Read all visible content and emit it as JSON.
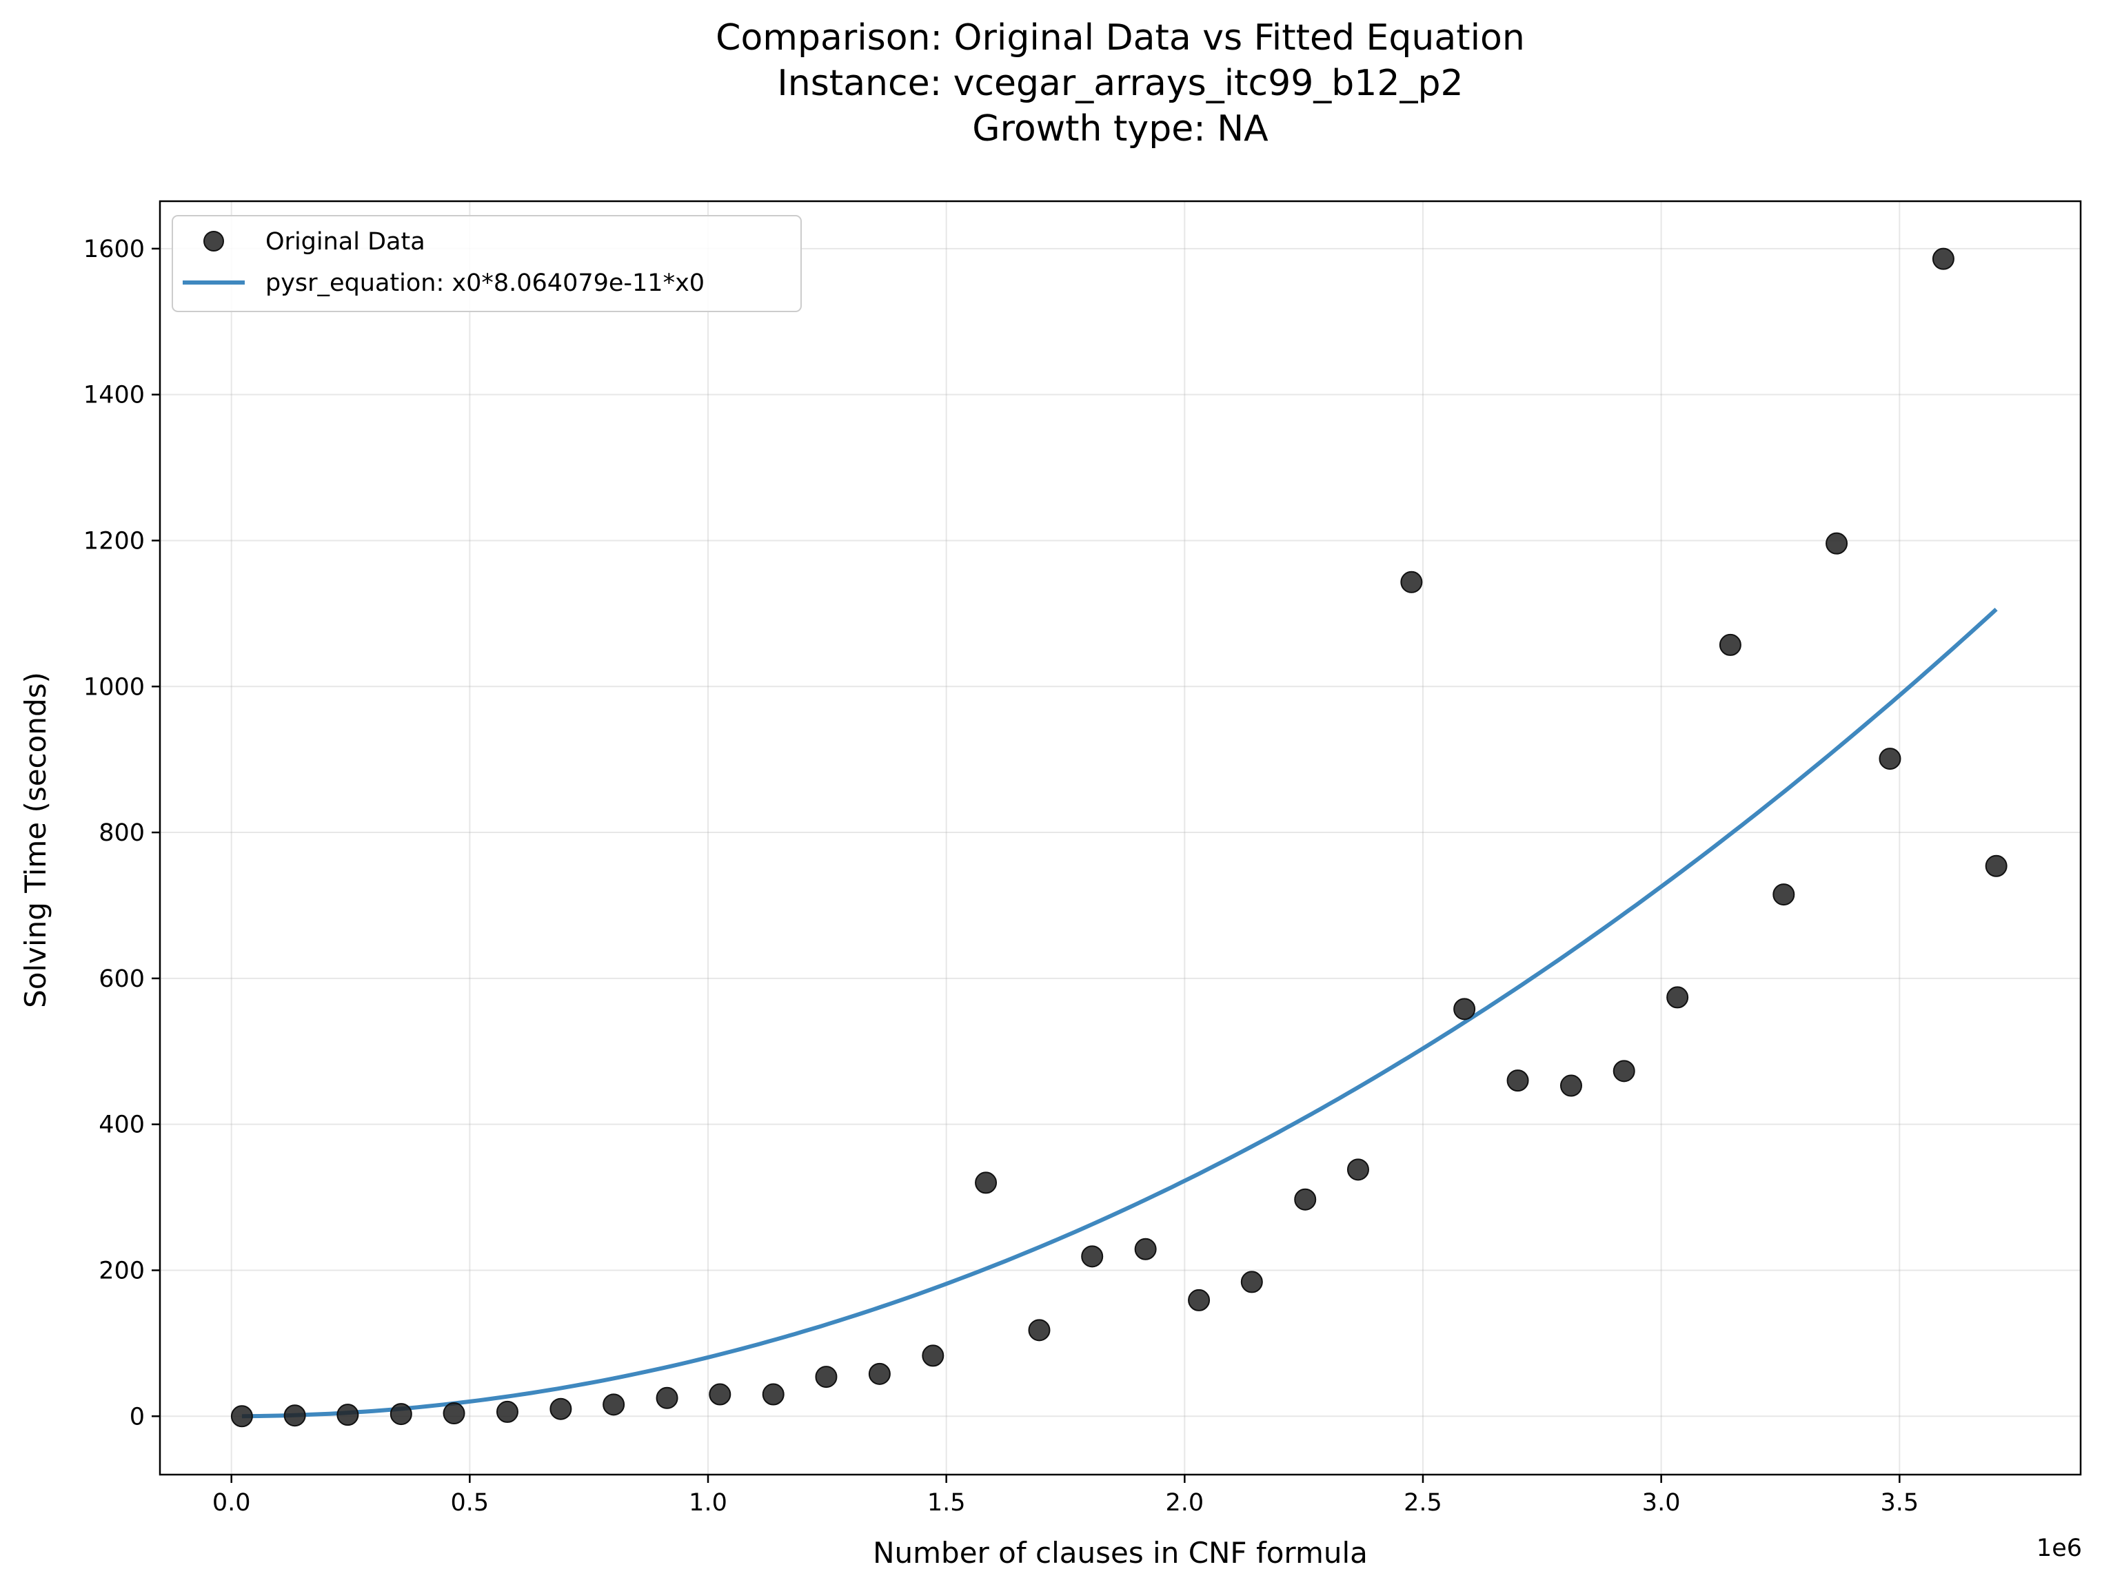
{
  "chart_data": {
    "type": "scatter",
    "title_lines": [
      "Comparison: Original Data vs Fitted Equation",
      "Instance: vcegar_arrays_itc99_b12_p2",
      "Growth type: NA"
    ],
    "xlabel": "Number of clauses in CNF formula",
    "ylabel": "Solving Time (seconds)",
    "x_offset_text": "1e6",
    "xlim": [
      -150000,
      3880000
    ],
    "ylim": [
      -80,
      1665
    ],
    "x_ticks": [
      0,
      500000,
      1000000,
      1500000,
      2000000,
      2500000,
      3000000,
      3500000
    ],
    "x_tick_labels": [
      "0.0",
      "0.5",
      "1.0",
      "1.5",
      "2.0",
      "2.5",
      "3.0",
      "3.5"
    ],
    "y_ticks": [
      0,
      200,
      400,
      600,
      800,
      1000,
      1200,
      1400,
      1600
    ],
    "y_tick_labels": [
      "0",
      "200",
      "400",
      "600",
      "800",
      "1000",
      "1200",
      "1400",
      "1600"
    ],
    "grid": true,
    "legend_position": "top-left",
    "series": [
      {
        "name": "Original Data",
        "kind": "scatter",
        "color": "#222222",
        "x": [
          22000,
          133000,
          244000,
          356000,
          467000,
          579000,
          691000,
          802000,
          914000,
          1025000,
          1137000,
          1248000,
          1360000,
          1472000,
          1583000,
          1695000,
          1806000,
          1918000,
          2030000,
          2141000,
          2253000,
          2364000,
          2476000,
          2587000,
          2699000,
          2811000,
          2922000,
          3034000,
          3145000,
          3257000,
          3368000,
          3480000,
          3592000,
          3703000
        ],
        "y": [
          0,
          1,
          2,
          3,
          4,
          6,
          10,
          16,
          25,
          30,
          30,
          54,
          58,
          83,
          320,
          118,
          219,
          229,
          159,
          184,
          297,
          338,
          1143,
          558,
          460,
          453,
          473,
          574,
          1057,
          715,
          1196,
          901,
          1586,
          754
        ]
      },
      {
        "name": "pysr_equation: x0*8.064079e-11*x0",
        "kind": "line",
        "color": "#3f88bf",
        "coefficient": 8.064079e-11,
        "x_range": [
          22000,
          3703000
        ]
      }
    ]
  }
}
